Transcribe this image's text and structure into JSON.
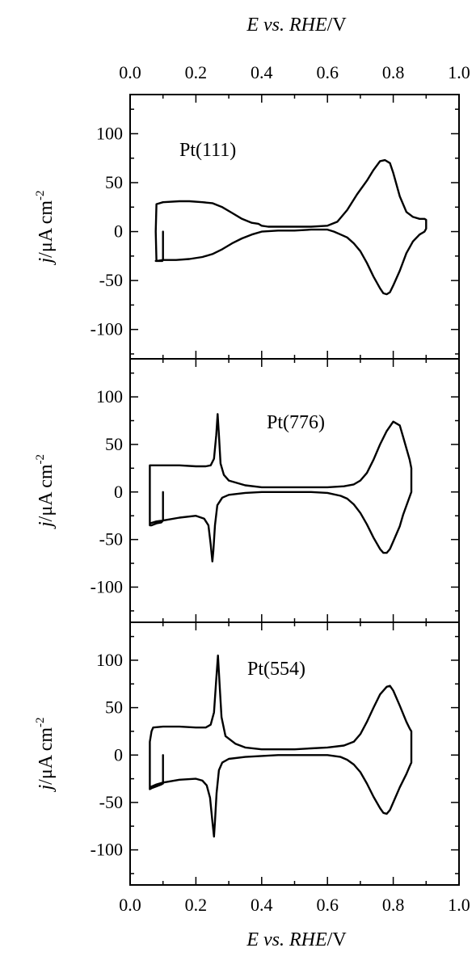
{
  "chart_data": [
    {
      "type": "line",
      "label": "Pt(111)",
      "xlim": [
        0.0,
        1.0
      ],
      "ylim": [
        -130,
        140
      ],
      "yticks": [
        -100,
        -50,
        0,
        50,
        100
      ],
      "yticklabels": [
        "-100",
        "-50",
        "0",
        "50",
        "100"
      ],
      "series": [
        {
          "x": [
            0.1,
            0.1,
            0.098,
            0.08,
            0.078,
            0.08,
            0.1,
            0.15,
            0.18,
            0.22,
            0.25,
            0.28,
            0.31,
            0.34,
            0.37,
            0.39,
            0.4,
            0.42,
            0.45,
            0.5,
            0.55,
            0.6,
            0.63,
            0.66,
            0.69,
            0.72,
            0.74,
            0.76,
            0.775,
            0.79,
            0.8,
            0.82,
            0.84,
            0.86,
            0.88,
            0.895,
            0.9,
            0.9,
            0.895,
            0.88,
            0.86,
            0.84,
            0.82,
            0.8,
            0.79,
            0.78,
            0.77,
            0.76,
            0.74,
            0.72,
            0.7,
            0.68,
            0.66,
            0.64,
            0.62,
            0.6,
            0.55,
            0.5,
            0.45,
            0.4,
            0.37,
            0.34,
            0.31,
            0.28,
            0.25,
            0.22,
            0.18,
            0.14,
            0.1,
            0.08,
            0.078
          ],
          "y": [
            0,
            -28,
            -30,
            -30,
            0,
            28,
            30,
            31,
            31,
            30,
            29,
            25,
            19,
            13,
            9,
            8,
            6,
            5,
            5,
            5,
            5,
            6,
            10,
            22,
            38,
            52,
            63,
            72,
            73,
            70,
            60,
            36,
            20,
            15,
            13,
            13,
            12,
            3,
            0,
            -3,
            -10,
            -22,
            -40,
            -55,
            -62,
            -64,
            -63,
            -58,
            -46,
            -32,
            -20,
            -12,
            -6,
            -3,
            0,
            2,
            2,
            1,
            1,
            0,
            -3,
            -7,
            -12,
            -18,
            -23,
            -26,
            -28,
            -29,
            -29,
            -30,
            -30
          ]
        }
      ]
    },
    {
      "type": "line",
      "label": "Pt(776)",
      "xlim": [
        0.0,
        1.0
      ],
      "ylim": [
        -137,
        140
      ],
      "yticks": [
        -100,
        -50,
        0,
        50,
        100
      ],
      "yticklabels": [
        "-100",
        "-50",
        "0",
        "50",
        "100"
      ],
      "series": [
        {
          "x": [
            0.1,
            0.1,
            0.095,
            0.08,
            0.065,
            0.06,
            0.06,
            0.07,
            0.1,
            0.15,
            0.2,
            0.23,
            0.245,
            0.255,
            0.262,
            0.266,
            0.27,
            0.275,
            0.285,
            0.3,
            0.35,
            0.4,
            0.45,
            0.5,
            0.55,
            0.6,
            0.65,
            0.68,
            0.7,
            0.72,
            0.74,
            0.76,
            0.78,
            0.8,
            0.82,
            0.83,
            0.85,
            0.855,
            0.855,
            0.85,
            0.83,
            0.82,
            0.8,
            0.79,
            0.78,
            0.77,
            0.76,
            0.74,
            0.72,
            0.7,
            0.68,
            0.66,
            0.64,
            0.6,
            0.55,
            0.5,
            0.45,
            0.4,
            0.35,
            0.3,
            0.28,
            0.265,
            0.258,
            0.253,
            0.25,
            0.245,
            0.238,
            0.225,
            0.2,
            0.15,
            0.1,
            0.08,
            0.06
          ],
          "y": [
            0,
            -30,
            -32,
            -33,
            -35,
            -35,
            28,
            28,
            28,
            28,
            27,
            27,
            28,
            35,
            60,
            82,
            60,
            30,
            18,
            12,
            7,
            5,
            5,
            5,
            5,
            5,
            6,
            8,
            12,
            20,
            34,
            50,
            64,
            74,
            70,
            58,
            34,
            25,
            0,
            -5,
            -24,
            -36,
            -52,
            -60,
            -64,
            -64,
            -60,
            -48,
            -34,
            -22,
            -13,
            -7,
            -4,
            -1,
            0,
            0,
            0,
            0,
            -1,
            -3,
            -6,
            -14,
            -35,
            -62,
            -73,
            -55,
            -35,
            -28,
            -25,
            -27,
            -30,
            -31,
            -33
          ]
        }
      ]
    },
    {
      "type": "line",
      "label": "Pt(554)",
      "xlim": [
        0.0,
        1.0
      ],
      "ylim": [
        -137,
        140
      ],
      "yticks": [
        -100,
        -50,
        0,
        50,
        100
      ],
      "yticklabels": [
        "-100",
        "-50",
        "0",
        "50",
        "100"
      ],
      "series": [
        {
          "x": [
            0.1,
            0.1,
            0.095,
            0.08,
            0.065,
            0.06,
            0.06,
            0.065,
            0.07,
            0.1,
            0.15,
            0.2,
            0.23,
            0.245,
            0.255,
            0.262,
            0.267,
            0.272,
            0.278,
            0.29,
            0.32,
            0.35,
            0.4,
            0.45,
            0.5,
            0.55,
            0.6,
            0.65,
            0.68,
            0.7,
            0.72,
            0.74,
            0.76,
            0.78,
            0.79,
            0.8,
            0.82,
            0.84,
            0.85,
            0.855,
            0.855,
            0.85,
            0.84,
            0.82,
            0.8,
            0.79,
            0.78,
            0.77,
            0.76,
            0.74,
            0.72,
            0.7,
            0.68,
            0.66,
            0.64,
            0.6,
            0.55,
            0.5,
            0.45,
            0.4,
            0.35,
            0.3,
            0.28,
            0.27,
            0.263,
            0.258,
            0.255,
            0.25,
            0.243,
            0.233,
            0.22,
            0.2,
            0.15,
            0.1,
            0.08,
            0.06
          ],
          "y": [
            0,
            -30,
            -31,
            -33,
            -35,
            -36,
            14,
            25,
            29,
            30,
            30,
            29,
            29,
            32,
            45,
            80,
            105,
            75,
            40,
            20,
            12,
            8,
            6,
            6,
            6,
            7,
            8,
            10,
            14,
            22,
            35,
            50,
            64,
            72,
            73,
            68,
            52,
            35,
            28,
            25,
            -8,
            -12,
            -20,
            -34,
            -50,
            -58,
            -62,
            -61,
            -56,
            -44,
            -30,
            -18,
            -10,
            -5,
            -2,
            0,
            0,
            0,
            0,
            -1,
            -2,
            -4,
            -8,
            -16,
            -40,
            -70,
            -86,
            -70,
            -45,
            -32,
            -27,
            -25,
            -26,
            -29,
            -31,
            -34
          ]
        }
      ]
    }
  ],
  "axes": {
    "top_title": {
      "E": "E",
      "vs": " vs. ",
      "RHE": "RHE",
      "unit": "/V"
    },
    "bottom_title": {
      "E": "E",
      "vs": " vs. ",
      "RHE": "RHE",
      "unit": "/V"
    },
    "xticks": [
      0.0,
      0.2,
      0.4,
      0.6,
      0.8,
      1.0
    ],
    "xticklabels": [
      "0.0",
      "0.2",
      "0.4",
      "0.6",
      "0.8",
      "1.0"
    ],
    "ylabel": {
      "j": "j",
      "unit": "/μA cm",
      "exp": "-2"
    }
  },
  "colors": {
    "line": "#000000",
    "background": "#ffffff"
  }
}
